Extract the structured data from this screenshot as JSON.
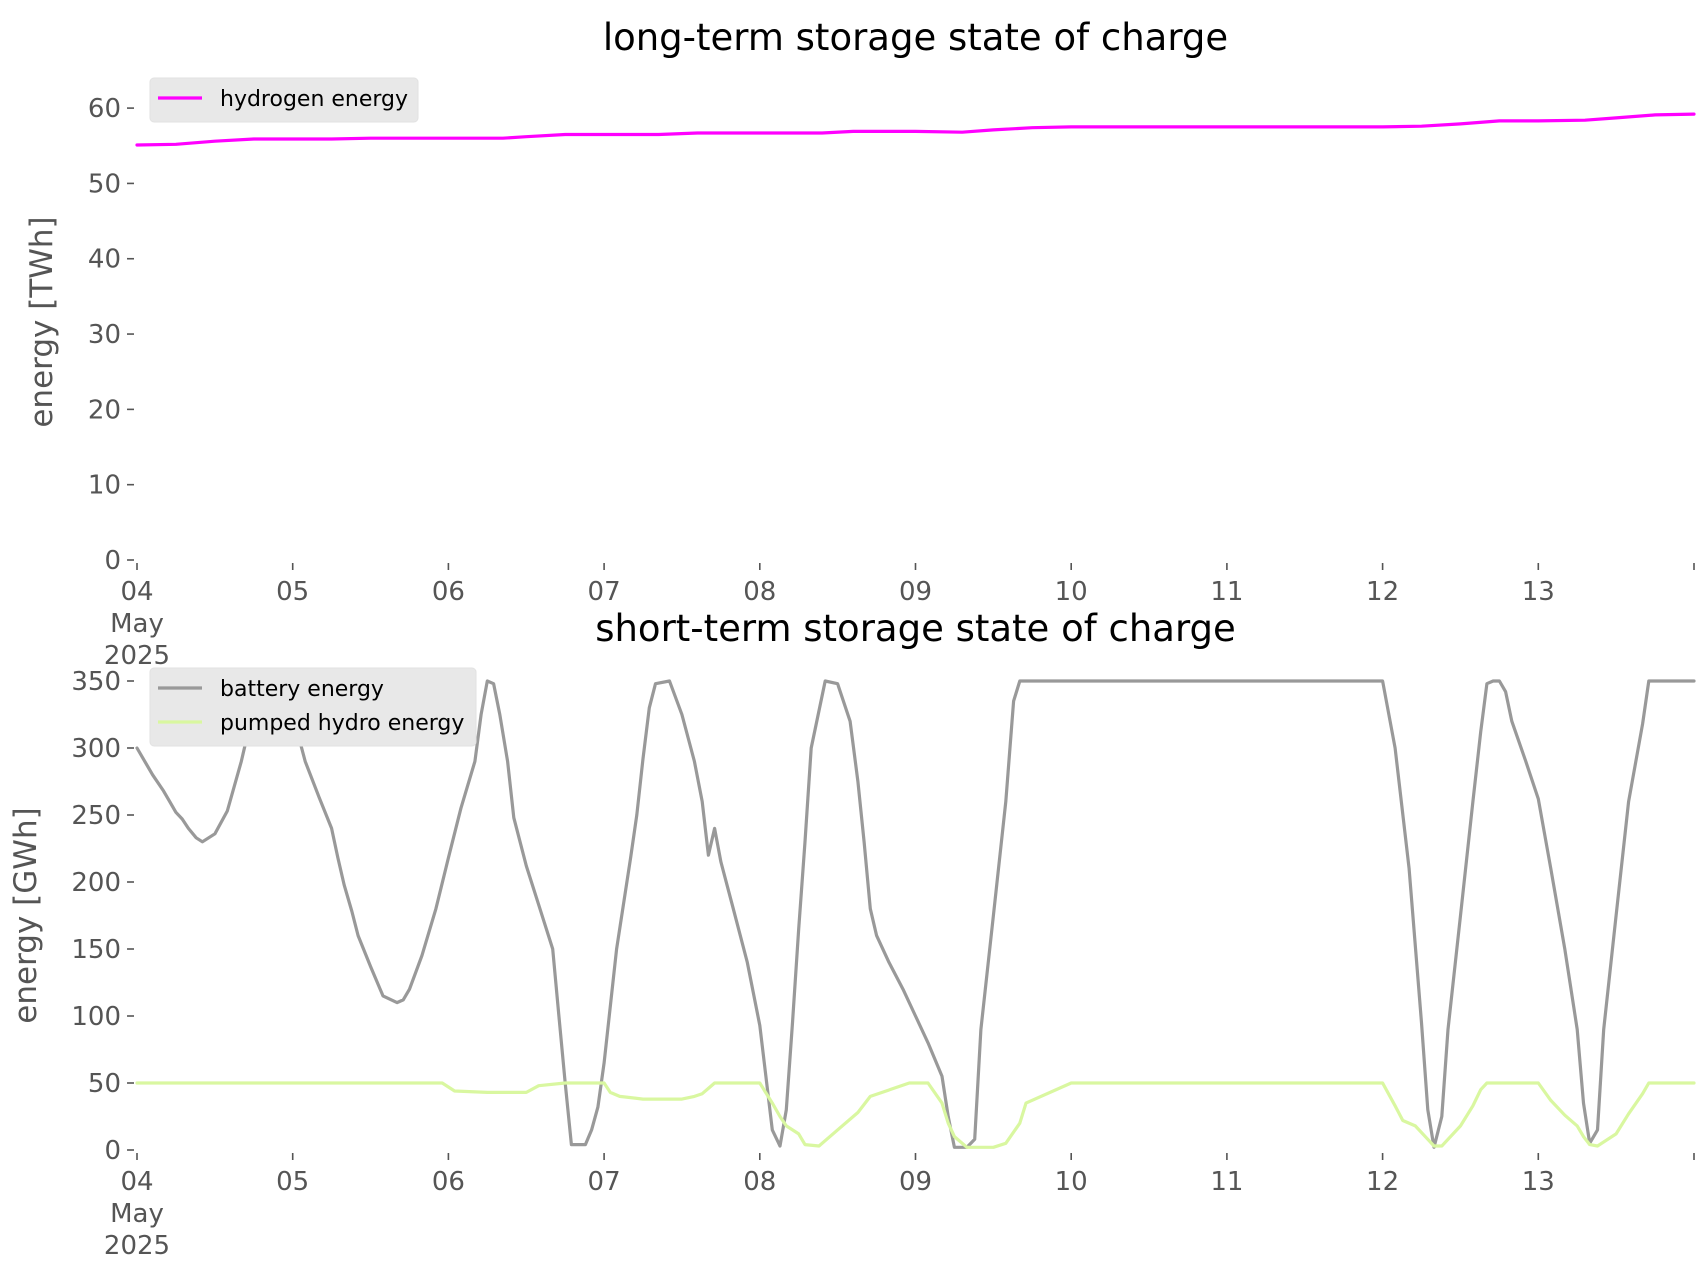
{
  "chart_data": [
    {
      "type": "line",
      "title": "long-term storage state of charge",
      "xlabel": "",
      "ylabel": "energy [TWh]",
      "x_ticks": [
        {
          "day": 4,
          "lines": [
            "04",
            "May",
            "2025"
          ]
        },
        {
          "day": 5,
          "lines": [
            "05"
          ]
        },
        {
          "day": 6,
          "lines": [
            "06"
          ]
        },
        {
          "day": 7,
          "lines": [
            "07"
          ]
        },
        {
          "day": 8,
          "lines": [
            "08"
          ]
        },
        {
          "day": 9,
          "lines": [
            "09"
          ]
        },
        {
          "day": 10,
          "lines": [
            "10"
          ]
        },
        {
          "day": 11,
          "lines": [
            "11"
          ]
        },
        {
          "day": 12,
          "lines": [
            "12"
          ]
        },
        {
          "day": 13,
          "lines": [
            "13"
          ]
        }
      ],
      "xlim_days": [
        4,
        14
      ],
      "y_ticks": [
        "0",
        "10",
        "20",
        "30",
        "40",
        "50",
        "60"
      ],
      "ylim": [
        0,
        63.2
      ],
      "grid": false,
      "legend_position": "top-left",
      "series": [
        {
          "name": "hydrogen energy",
          "color": "#ff00ff",
          "x_days": [
            4.0,
            4.25,
            4.5,
            4.75,
            5.0,
            5.25,
            5.5,
            5.75,
            6.0,
            6.25,
            6.35,
            6.5,
            6.75,
            7.0,
            7.35,
            7.6,
            8.0,
            8.4,
            8.6,
            9.0,
            9.3,
            9.5,
            9.75,
            10.0,
            10.5,
            11.0,
            11.5,
            12.0,
            12.25,
            12.5,
            12.75,
            13.0,
            13.3,
            13.5,
            13.75,
            14.0
          ],
          "values": [
            55.1,
            55.2,
            55.6,
            55.9,
            55.9,
            55.9,
            56.0,
            56.0,
            56.0,
            56.0,
            56.0,
            56.2,
            56.5,
            56.5,
            56.5,
            56.7,
            56.7,
            56.7,
            56.9,
            56.9,
            56.8,
            57.1,
            57.4,
            57.5,
            57.5,
            57.5,
            57.5,
            57.5,
            57.6,
            57.9,
            58.3,
            58.3,
            58.4,
            58.7,
            59.1,
            59.2
          ]
        }
      ]
    },
    {
      "type": "line",
      "title": "short-term storage state of charge",
      "xlabel": "",
      "ylabel": "energy [GWh]",
      "x_ticks": [
        {
          "day": 4,
          "lines": [
            "04",
            "May",
            "2025"
          ]
        },
        {
          "day": 5,
          "lines": [
            "05"
          ]
        },
        {
          "day": 6,
          "lines": [
            "06"
          ]
        },
        {
          "day": 7,
          "lines": [
            "07"
          ]
        },
        {
          "day": 8,
          "lines": [
            "08"
          ]
        },
        {
          "day": 9,
          "lines": [
            "09"
          ]
        },
        {
          "day": 10,
          "lines": [
            "10"
          ]
        },
        {
          "day": 11,
          "lines": [
            "11"
          ]
        },
        {
          "day": 12,
          "lines": [
            "12"
          ]
        },
        {
          "day": 13,
          "lines": [
            "13"
          ]
        }
      ],
      "xlim_days": [
        4,
        14
      ],
      "y_ticks": [
        "0",
        "50",
        "100",
        "150",
        "200",
        "250",
        "300",
        "350"
      ],
      "ylim": [
        0,
        350
      ],
      "grid": false,
      "legend_position": "top-left",
      "series": [
        {
          "name": "battery energy",
          "color": "#999999",
          "x_days": [
            4.0,
            4.05,
            4.1,
            4.17,
            4.21,
            4.25,
            4.29,
            4.33,
            4.38,
            4.42,
            4.5,
            4.58,
            4.67,
            4.75,
            4.83,
            4.92,
            5.0,
            5.08,
            5.17,
            5.25,
            5.29,
            5.33,
            5.38,
            5.42,
            5.5,
            5.58,
            5.67,
            5.71,
            5.75,
            5.83,
            5.92,
            6.0,
            6.08,
            6.17,
            6.21,
            6.25,
            6.29,
            6.33,
            6.38,
            6.42,
            6.5,
            6.58,
            6.67,
            6.71,
            6.75,
            6.79,
            6.88,
            6.92,
            6.96,
            7.0,
            7.08,
            7.17,
            7.21,
            7.25,
            7.29,
            7.33,
            7.42,
            7.5,
            7.58,
            7.63,
            7.67,
            7.71,
            7.75,
            7.83,
            7.92,
            8.0,
            8.08,
            8.13,
            8.17,
            8.21,
            8.25,
            8.29,
            8.33,
            8.42,
            8.5,
            8.58,
            8.63,
            8.67,
            8.71,
            8.75,
            8.83,
            8.92,
            9.0,
            9.08,
            9.17,
            9.21,
            9.25,
            9.29,
            9.33,
            9.38,
            9.42,
            9.5,
            9.58,
            9.63,
            9.67,
            9.71,
            10.0,
            11.0,
            11.96,
            12.0,
            12.08,
            12.17,
            12.25,
            12.29,
            12.33,
            12.38,
            12.42,
            12.5,
            12.58,
            12.63,
            12.67,
            12.71,
            12.75,
            12.79,
            12.83,
            12.92,
            13.0,
            13.08,
            13.17,
            13.25,
            13.29,
            13.33,
            13.38,
            13.42,
            13.5,
            13.58,
            13.67,
            13.71,
            13.75,
            14.0
          ],
          "values": [
            300,
            290,
            280,
            268,
            260,
            252,
            247,
            240,
            233,
            230,
            236,
            253,
            290,
            330,
            350,
            348,
            325,
            290,
            263,
            240,
            218,
            198,
            178,
            160,
            137,
            115,
            110,
            112,
            120,
            145,
            180,
            218,
            255,
            290,
            325,
            350,
            348,
            325,
            290,
            248,
            212,
            183,
            150,
            100,
            50,
            4,
            4,
            15,
            32,
            65,
            150,
            218,
            250,
            292,
            330,
            348,
            350,
            325,
            290,
            260,
            220,
            240,
            215,
            180,
            140,
            93,
            15,
            3,
            30,
            95,
            165,
            230,
            300,
            350,
            348,
            320,
            275,
            230,
            180,
            160,
            140,
            120,
            100,
            80,
            55,
            25,
            2,
            2,
            2,
            8,
            90,
            175,
            260,
            335,
            350,
            350,
            350,
            350,
            350,
            350,
            300,
            210,
            95,
            30,
            2,
            25,
            90,
            175,
            260,
            312,
            348,
            350,
            350,
            342,
            320,
            290,
            262,
            210,
            150,
            90,
            35,
            5,
            15,
            90,
            175,
            260,
            318,
            350,
            350,
            350
          ]
        },
        {
          "name": "pumped hydro energy",
          "color": "#d9f7a0",
          "x_days": [
            4.0,
            4.5,
            5.0,
            5.5,
            5.92,
            5.96,
            6.04,
            6.25,
            6.42,
            6.5,
            6.58,
            6.75,
            6.96,
            7.0,
            7.04,
            7.1,
            7.25,
            7.38,
            7.5,
            7.58,
            7.63,
            7.67,
            7.71,
            7.75,
            7.96,
            8.0,
            8.08,
            8.13,
            8.17,
            8.25,
            8.29,
            8.38,
            8.5,
            8.63,
            8.71,
            8.96,
            9.0,
            9.08,
            9.17,
            9.21,
            9.25,
            9.33,
            9.42,
            9.5,
            9.58,
            9.67,
            9.71,
            10.0,
            11.0,
            11.96,
            12.0,
            12.08,
            12.13,
            12.21,
            12.29,
            12.33,
            12.38,
            12.5,
            12.58,
            12.63,
            12.67,
            12.96,
            13.0,
            13.08,
            13.17,
            13.25,
            13.29,
            13.33,
            13.38,
            13.5,
            13.58,
            13.67,
            13.71,
            13.75,
            14.0
          ],
          "values": [
            50,
            50,
            50,
            50,
            50,
            50,
            44,
            43,
            43,
            43,
            48,
            50,
            50,
            50,
            43,
            40,
            38,
            38,
            38,
            40,
            42,
            46,
            50,
            50,
            50,
            50,
            35,
            25,
            18,
            12,
            4,
            3,
            15,
            28,
            40,
            50,
            50,
            50,
            35,
            20,
            10,
            2,
            2,
            2,
            5,
            20,
            35,
            50,
            50,
            50,
            50,
            33,
            22,
            18,
            8,
            3,
            3,
            18,
            33,
            45,
            50,
            50,
            50,
            37,
            26,
            18,
            10,
            4,
            3,
            12,
            27,
            42,
            50,
            50,
            50
          ]
        }
      ]
    }
  ]
}
